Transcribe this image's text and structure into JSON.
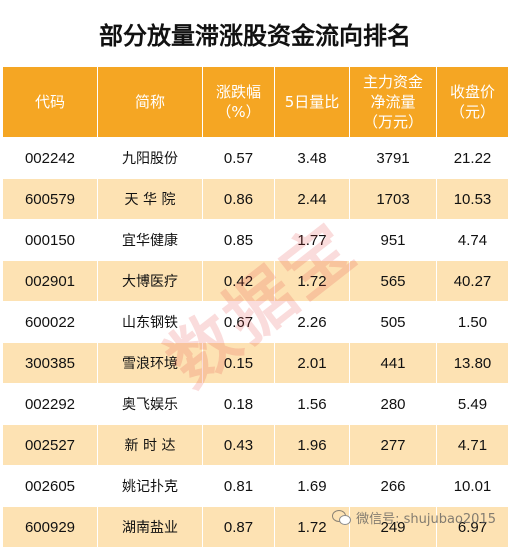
{
  "title": "部分放量滞涨股资金流向排名",
  "headers": {
    "code": "代码",
    "name": "简称",
    "change_l1": "涨跌幅",
    "change_l2": "（%）",
    "ratio": "5日量比",
    "flow_l1": "主力资金",
    "flow_l2": "净流量",
    "flow_l3": "（万元）",
    "close_l1": "收盘价",
    "close_l2": "（元）"
  },
  "rows": [
    {
      "code": "002242",
      "name": "九阳股份",
      "change": "0.57",
      "ratio": "3.48",
      "flow": "3791",
      "close": "21.22"
    },
    {
      "code": "600579",
      "name": "天 华 院",
      "change": "0.86",
      "ratio": "2.44",
      "flow": "1703",
      "close": "10.53"
    },
    {
      "code": "000150",
      "name": "宜华健康",
      "change": "0.85",
      "ratio": "1.77",
      "flow": "951",
      "close": "4.74"
    },
    {
      "code": "002901",
      "name": "大博医疗",
      "change": "0.42",
      "ratio": "1.72",
      "flow": "565",
      "close": "40.27"
    },
    {
      "code": "600022",
      "name": "山东钢铁",
      "change": "0.67",
      "ratio": "2.26",
      "flow": "505",
      "close": "1.50"
    },
    {
      "code": "300385",
      "name": "雪浪环境",
      "change": "0.15",
      "ratio": "2.01",
      "flow": "441",
      "close": "13.80"
    },
    {
      "code": "002292",
      "name": "奥飞娱乐",
      "change": "0.18",
      "ratio": "1.56",
      "flow": "280",
      "close": "5.49"
    },
    {
      "code": "002527",
      "name": "新 时 达",
      "change": "0.43",
      "ratio": "1.96",
      "flow": "277",
      "close": "4.71"
    },
    {
      "code": "002605",
      "name": "姚记扑克",
      "change": "0.81",
      "ratio": "1.69",
      "flow": "266",
      "close": "10.01"
    },
    {
      "code": "600929",
      "name": "湖南盐业",
      "change": "0.87",
      "ratio": "1.72",
      "flow": "249",
      "close": "6.97"
    }
  ],
  "watermark": "数据宝",
  "credit": "微信号: shujubao2015"
}
